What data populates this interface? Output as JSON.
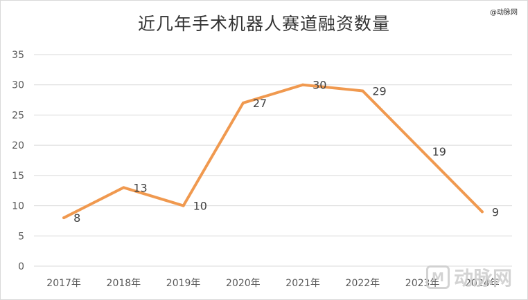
{
  "source": "@动脉网",
  "watermark": {
    "text": "动脉网"
  },
  "chart_data": {
    "type": "line",
    "title": "近几年手术机器人赛道融资数量",
    "categories": [
      "2017年",
      "2018年",
      "2019年",
      "2020年",
      "2021年",
      "2022年",
      "2023年",
      "2024年"
    ],
    "series": [
      {
        "values": [
          8,
          13,
          10,
          27,
          30,
          29,
          19,
          9
        ],
        "color": "#f0994f"
      }
    ],
    "yticks": [
      0,
      5,
      10,
      15,
      20,
      25,
      30,
      35
    ],
    "ylim": [
      0,
      35
    ],
    "grid": true,
    "data_labels": true,
    "legend": "none",
    "xlabel": "",
    "ylabel": ""
  }
}
